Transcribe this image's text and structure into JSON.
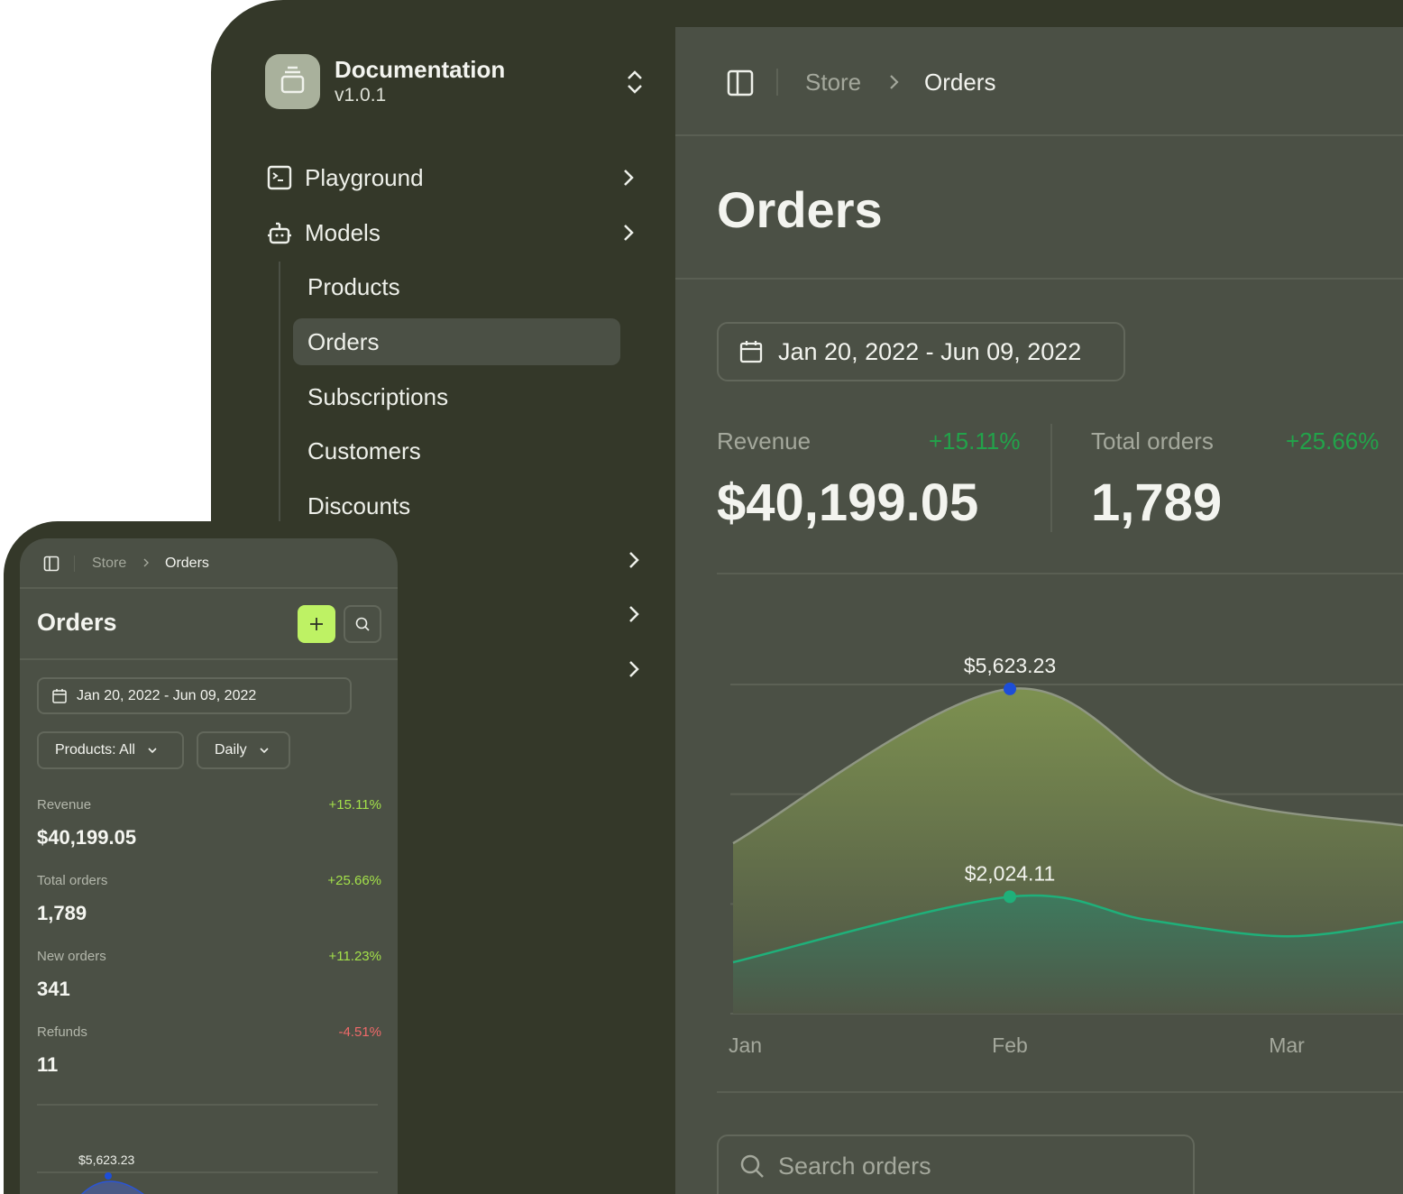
{
  "sidebar": {
    "workspace": {
      "name": "Documentation",
      "version": "v1.0.1",
      "icon": "archive-icon"
    },
    "items": [
      {
        "label": "Playground",
        "icon": "terminal-icon"
      },
      {
        "label": "Models",
        "icon": "bot-icon"
      }
    ],
    "sub_items": [
      {
        "label": "Products"
      },
      {
        "label": "Orders",
        "active": true
      },
      {
        "label": "Subscriptions"
      },
      {
        "label": "Customers"
      },
      {
        "label": "Discounts"
      }
    ]
  },
  "header": {
    "breadcrumb": [
      "Store",
      "Orders"
    ]
  },
  "page": {
    "title": "Orders",
    "date_range": "Jan 20, 2022 - Jun 09, 2022",
    "search_placeholder": "Search orders"
  },
  "stats": [
    {
      "label": "Revenue",
      "change": "+15.11%",
      "value": "$40,199.05"
    },
    {
      "label": "Total orders",
      "change": "+25.66%",
      "value": "1,789"
    },
    {
      "label": "New orders",
      "change": "+11.23%",
      "value": "341"
    },
    {
      "label": "Refunds",
      "change": "-4.51%",
      "value": "11"
    }
  ],
  "mobile": {
    "title": "Orders",
    "filters": {
      "products": "Products: All",
      "interval": "Daily"
    },
    "chart_peak_label": "$5,623.23"
  },
  "colors": {
    "accent": "#bef264",
    "positive": "#22a34a",
    "negative": "#f06a6a",
    "series_top_dot": "#1d4ed8",
    "series_bottom": "#1fb07a"
  },
  "chart_data": {
    "type": "area",
    "x_ticks": [
      "Jan",
      "Feb",
      "Mar"
    ],
    "ylim": [
      0,
      5700
    ],
    "grid": true,
    "series": [
      {
        "points": [
          [
            0,
            2950
          ],
          [
            1,
            5623.23
          ],
          [
            1.68,
            3810
          ],
          [
            2.42,
            3260
          ]
        ],
        "peak_label": "$5,623.23"
      },
      {
        "points": [
          [
            0,
            890
          ],
          [
            1,
            2024.11
          ],
          [
            1.5,
            1620
          ],
          [
            2,
            1340
          ],
          [
            2.42,
            1590
          ]
        ],
        "peak_label": "$2,024.11"
      }
    ]
  }
}
